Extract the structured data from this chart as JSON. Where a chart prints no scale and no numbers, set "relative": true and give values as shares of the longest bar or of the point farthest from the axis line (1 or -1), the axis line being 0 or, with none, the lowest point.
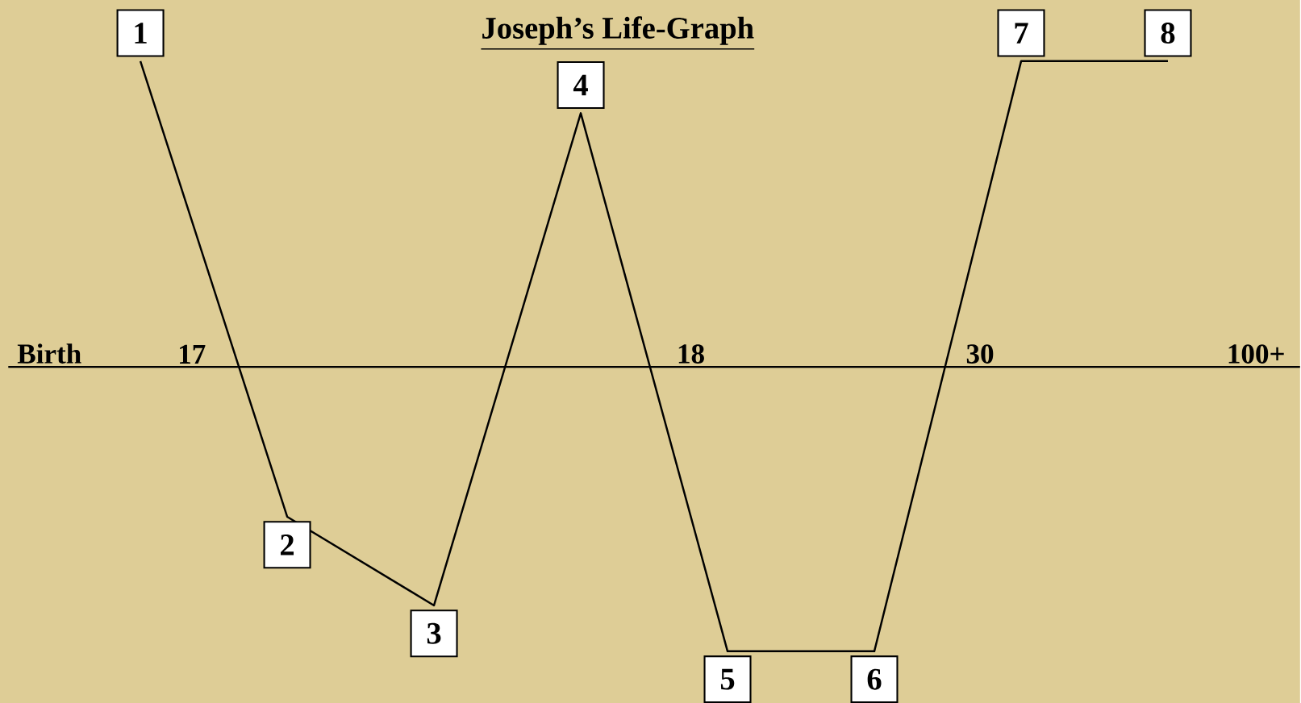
{
  "chart_data": {
    "type": "line",
    "title": "Joseph’s Life-Graph",
    "relative": true,
    "categories": [
      "1",
      "2",
      "3",
      "4",
      "5",
      "6",
      "7",
      "8"
    ],
    "series": [
      {
        "color": "#000000",
        "values": [
          1.0,
          -0.49,
          -0.78,
          0.83,
          -0.93,
          -0.93,
          1.0,
          1.0
        ]
      }
    ],
    "annotations": [
      "Birth",
      "17",
      "18",
      "30",
      "100+"
    ]
  }
}
